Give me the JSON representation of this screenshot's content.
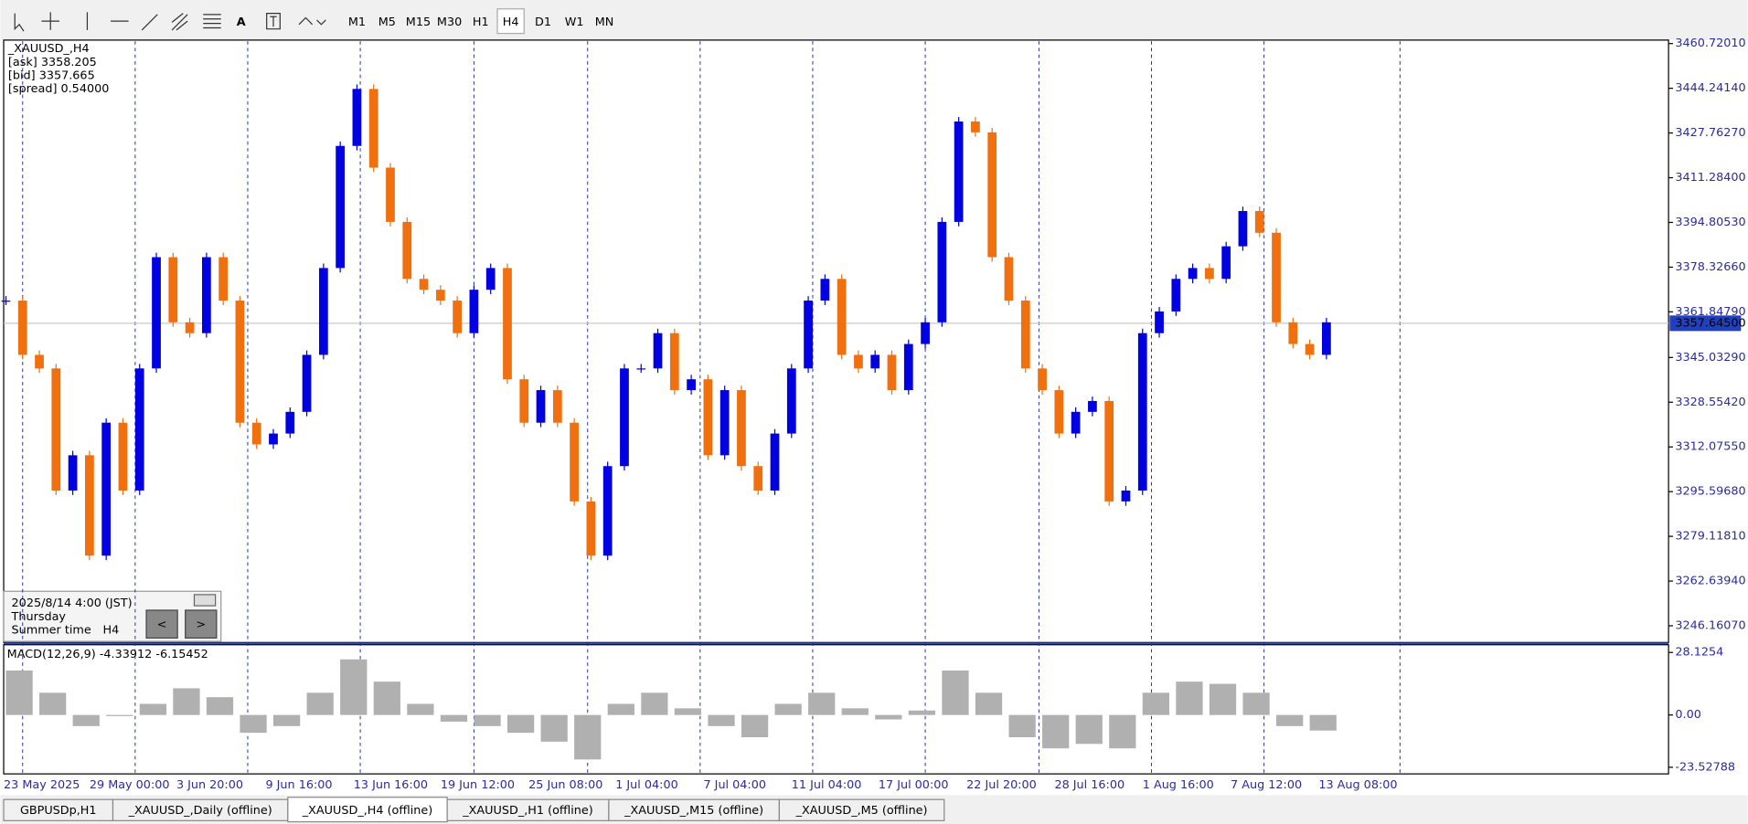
{
  "toolbar": {
    "timeframes": [
      "M1",
      "M5",
      "M15",
      "M30",
      "H1",
      "H4",
      "D1",
      "W1",
      "MN"
    ],
    "active": 5
  },
  "chart_data": {
    "type": "candlestick",
    "title": "_XAUUSD_,H4",
    "info": [
      "[ask] 3358.205",
      "[bid] 3357.665",
      "[spread] 0.54000"
    ],
    "x": [
      "23 May 2025",
      "29 May 00:00",
      "3 Jun 20:00",
      "9 Jun 16:00",
      "13 Jun 16:00",
      "19 Jun 12:00",
      "25 Jun 08:00",
      "1 Jul 04:00",
      "7 Jul 04:00",
      "11 Jul 04:00",
      "17 Jul 00:00",
      "22 Jul 20:00",
      "28 Jul 16:00",
      "1 Aug 16:00",
      "7 Aug 12:00",
      "13 Aug 08:00"
    ],
    "ylim": [
      3240.0,
      3462.0
    ],
    "yticks": [
      {
        "value": 3460.7201,
        "label": "3460.72010"
      },
      {
        "value": 3444.2414,
        "label": "3444.24140"
      },
      {
        "value": 3427.7627,
        "label": "3427.76270"
      },
      {
        "value": 3411.284,
        "label": "3411.28400"
      },
      {
        "value": 3394.8053,
        "label": "3394.80530"
      },
      {
        "value": 3378.3266,
        "label": "3378.32660"
      },
      {
        "value": 3361.8479,
        "label": "3361.84790"
      },
      {
        "value": 3345.0329,
        "label": "3345.03290"
      },
      {
        "value": 3328.5542,
        "label": "3328.55420"
      },
      {
        "value": 3312.0755,
        "label": "3312.07550"
      },
      {
        "value": 3295.5968,
        "label": "3295.59680"
      },
      {
        "value": 3279.1181,
        "label": "3279.11810"
      },
      {
        "value": 3262.6394,
        "label": "3262.63940"
      },
      {
        "value": 3246.1607,
        "label": "3246.16070"
      }
    ],
    "current_price": {
      "value": 3357.645,
      "label": "3357.64500"
    },
    "up_color": "#0000e0",
    "down_color": "#f07010",
    "closes": [
      3366,
      3346,
      3341,
      3296,
      3309,
      3272,
      3321,
      3296,
      3341,
      3382,
      3358,
      3354,
      3382,
      3366,
      3321,
      3313,
      3317,
      3325,
      3346,
      3378,
      3423,
      3444,
      3415,
      3395,
      3374,
      3370,
      3366,
      3354,
      3370,
      3378,
      3337,
      3321,
      3333,
      3321,
      3292,
      3272,
      3305,
      3341,
      3341,
      3354,
      3333,
      3337,
      3309,
      3333,
      3305,
      3296,
      3317,
      3341,
      3366,
      3374,
      3346,
      3341,
      3346,
      3333,
      3350,
      3358,
      3395,
      3432,
      3428,
      3382,
      3366,
      3341,
      3333,
      3317,
      3325,
      3329,
      3292,
      3296,
      3354,
      3362,
      3374,
      3378,
      3374,
      3386,
      3399,
      3391,
      3358,
      3350,
      3346,
      3358
    ]
  },
  "macd": {
    "label": "MACD(12,26,9) -4.33912 -6.15452",
    "color": "#b0b0b0",
    "values": [
      20,
      10,
      -5,
      0,
      5,
      12,
      8,
      -8,
      -5,
      10,
      25,
      15,
      5,
      -3,
      -5,
      -8,
      -12,
      -20,
      5,
      10,
      3,
      -5,
      -10,
      5,
      10,
      3,
      -2,
      2,
      20,
      10,
      -10,
      -15,
      -13,
      -15,
      10,
      15,
      14,
      10,
      -5,
      -7
    ],
    "y2lim": [
      -26.5,
      31.6
    ],
    "y2ticks": [
      28.1254,
      {
        "value": 0,
        "label": "0.00"
      },
      -23.52788
    ]
  },
  "time_box": {
    "datetime": "2025/8/14 4:00 (JST)",
    "day": "Thursday",
    "season": "Summer time",
    "period": "H4",
    "prev": "<",
    "next": ">"
  },
  "tabs": {
    "items": [
      "GBPUSDp,H1",
      "_XAUUSD_,Daily (offline)",
      "_XAUUSD_,H4 (offline)",
      "_XAUUSD_,H1 (offline)",
      "_XAUUSD_,M15 (offline)",
      "_XAUUSD_,M5 (offline)"
    ],
    "active": 2
  }
}
